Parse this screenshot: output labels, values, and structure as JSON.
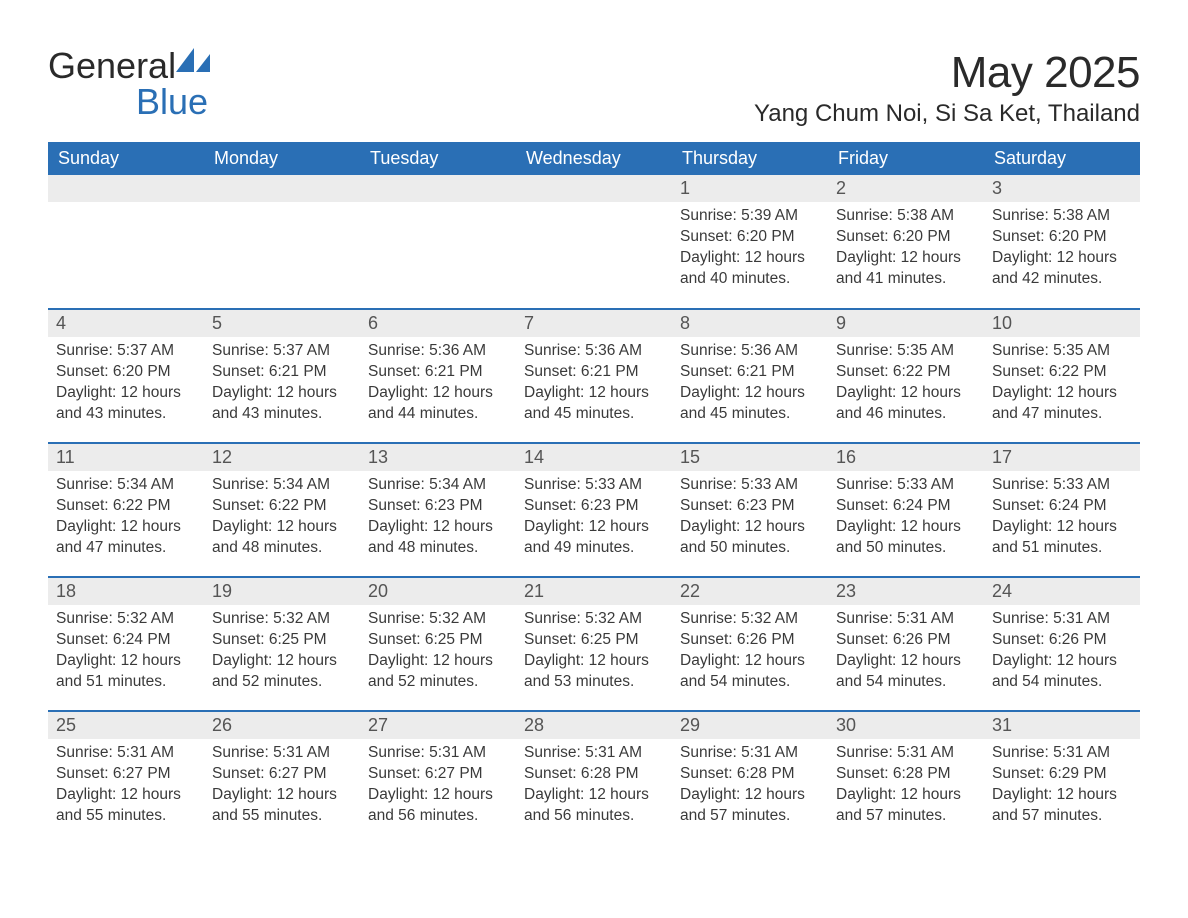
{
  "logo": {
    "text_general": "General",
    "text_blue": "Blue",
    "sail_color": "#2a6fb5"
  },
  "title": "May 2025",
  "location": "Yang Chum Noi, Si Sa Ket, Thailand",
  "colors": {
    "header_bg": "#2a6fb5",
    "header_text": "#ffffff",
    "daynum_bg": "#ececec",
    "daynum_text": "#555555",
    "body_text": "#3a3a3a",
    "row_divider": "#2a6fb5"
  },
  "day_headers": [
    "Sunday",
    "Monday",
    "Tuesday",
    "Wednesday",
    "Thursday",
    "Friday",
    "Saturday"
  ],
  "labels": {
    "sunrise": "Sunrise: ",
    "sunset": "Sunset: ",
    "daylight_prefix": "Daylight: "
  },
  "weeks": [
    [
      null,
      null,
      null,
      null,
      {
        "n": "1",
        "sunrise": "5:39 AM",
        "sunset": "6:20 PM",
        "daylight": "12 hours and 40 minutes."
      },
      {
        "n": "2",
        "sunrise": "5:38 AM",
        "sunset": "6:20 PM",
        "daylight": "12 hours and 41 minutes."
      },
      {
        "n": "3",
        "sunrise": "5:38 AM",
        "sunset": "6:20 PM",
        "daylight": "12 hours and 42 minutes."
      }
    ],
    [
      {
        "n": "4",
        "sunrise": "5:37 AM",
        "sunset": "6:20 PM",
        "daylight": "12 hours and 43 minutes."
      },
      {
        "n": "5",
        "sunrise": "5:37 AM",
        "sunset": "6:21 PM",
        "daylight": "12 hours and 43 minutes."
      },
      {
        "n": "6",
        "sunrise": "5:36 AM",
        "sunset": "6:21 PM",
        "daylight": "12 hours and 44 minutes."
      },
      {
        "n": "7",
        "sunrise": "5:36 AM",
        "sunset": "6:21 PM",
        "daylight": "12 hours and 45 minutes."
      },
      {
        "n": "8",
        "sunrise": "5:36 AM",
        "sunset": "6:21 PM",
        "daylight": "12 hours and 45 minutes."
      },
      {
        "n": "9",
        "sunrise": "5:35 AM",
        "sunset": "6:22 PM",
        "daylight": "12 hours and 46 minutes."
      },
      {
        "n": "10",
        "sunrise": "5:35 AM",
        "sunset": "6:22 PM",
        "daylight": "12 hours and 47 minutes."
      }
    ],
    [
      {
        "n": "11",
        "sunrise": "5:34 AM",
        "sunset": "6:22 PM",
        "daylight": "12 hours and 47 minutes."
      },
      {
        "n": "12",
        "sunrise": "5:34 AM",
        "sunset": "6:22 PM",
        "daylight": "12 hours and 48 minutes."
      },
      {
        "n": "13",
        "sunrise": "5:34 AM",
        "sunset": "6:23 PM",
        "daylight": "12 hours and 48 minutes."
      },
      {
        "n": "14",
        "sunrise": "5:33 AM",
        "sunset": "6:23 PM",
        "daylight": "12 hours and 49 minutes."
      },
      {
        "n": "15",
        "sunrise": "5:33 AM",
        "sunset": "6:23 PM",
        "daylight": "12 hours and 50 minutes."
      },
      {
        "n": "16",
        "sunrise": "5:33 AM",
        "sunset": "6:24 PM",
        "daylight": "12 hours and 50 minutes."
      },
      {
        "n": "17",
        "sunrise": "5:33 AM",
        "sunset": "6:24 PM",
        "daylight": "12 hours and 51 minutes."
      }
    ],
    [
      {
        "n": "18",
        "sunrise": "5:32 AM",
        "sunset": "6:24 PM",
        "daylight": "12 hours and 51 minutes."
      },
      {
        "n": "19",
        "sunrise": "5:32 AM",
        "sunset": "6:25 PM",
        "daylight": "12 hours and 52 minutes."
      },
      {
        "n": "20",
        "sunrise": "5:32 AM",
        "sunset": "6:25 PM",
        "daylight": "12 hours and 52 minutes."
      },
      {
        "n": "21",
        "sunrise": "5:32 AM",
        "sunset": "6:25 PM",
        "daylight": "12 hours and 53 minutes."
      },
      {
        "n": "22",
        "sunrise": "5:32 AM",
        "sunset": "6:26 PM",
        "daylight": "12 hours and 54 minutes."
      },
      {
        "n": "23",
        "sunrise": "5:31 AM",
        "sunset": "6:26 PM",
        "daylight": "12 hours and 54 minutes."
      },
      {
        "n": "24",
        "sunrise": "5:31 AM",
        "sunset": "6:26 PM",
        "daylight": "12 hours and 54 minutes."
      }
    ],
    [
      {
        "n": "25",
        "sunrise": "5:31 AM",
        "sunset": "6:27 PM",
        "daylight": "12 hours and 55 minutes."
      },
      {
        "n": "26",
        "sunrise": "5:31 AM",
        "sunset": "6:27 PM",
        "daylight": "12 hours and 55 minutes."
      },
      {
        "n": "27",
        "sunrise": "5:31 AM",
        "sunset": "6:27 PM",
        "daylight": "12 hours and 56 minutes."
      },
      {
        "n": "28",
        "sunrise": "5:31 AM",
        "sunset": "6:28 PM",
        "daylight": "12 hours and 56 minutes."
      },
      {
        "n": "29",
        "sunrise": "5:31 AM",
        "sunset": "6:28 PM",
        "daylight": "12 hours and 57 minutes."
      },
      {
        "n": "30",
        "sunrise": "5:31 AM",
        "sunset": "6:28 PM",
        "daylight": "12 hours and 57 minutes."
      },
      {
        "n": "31",
        "sunrise": "5:31 AM",
        "sunset": "6:29 PM",
        "daylight": "12 hours and 57 minutes."
      }
    ]
  ]
}
